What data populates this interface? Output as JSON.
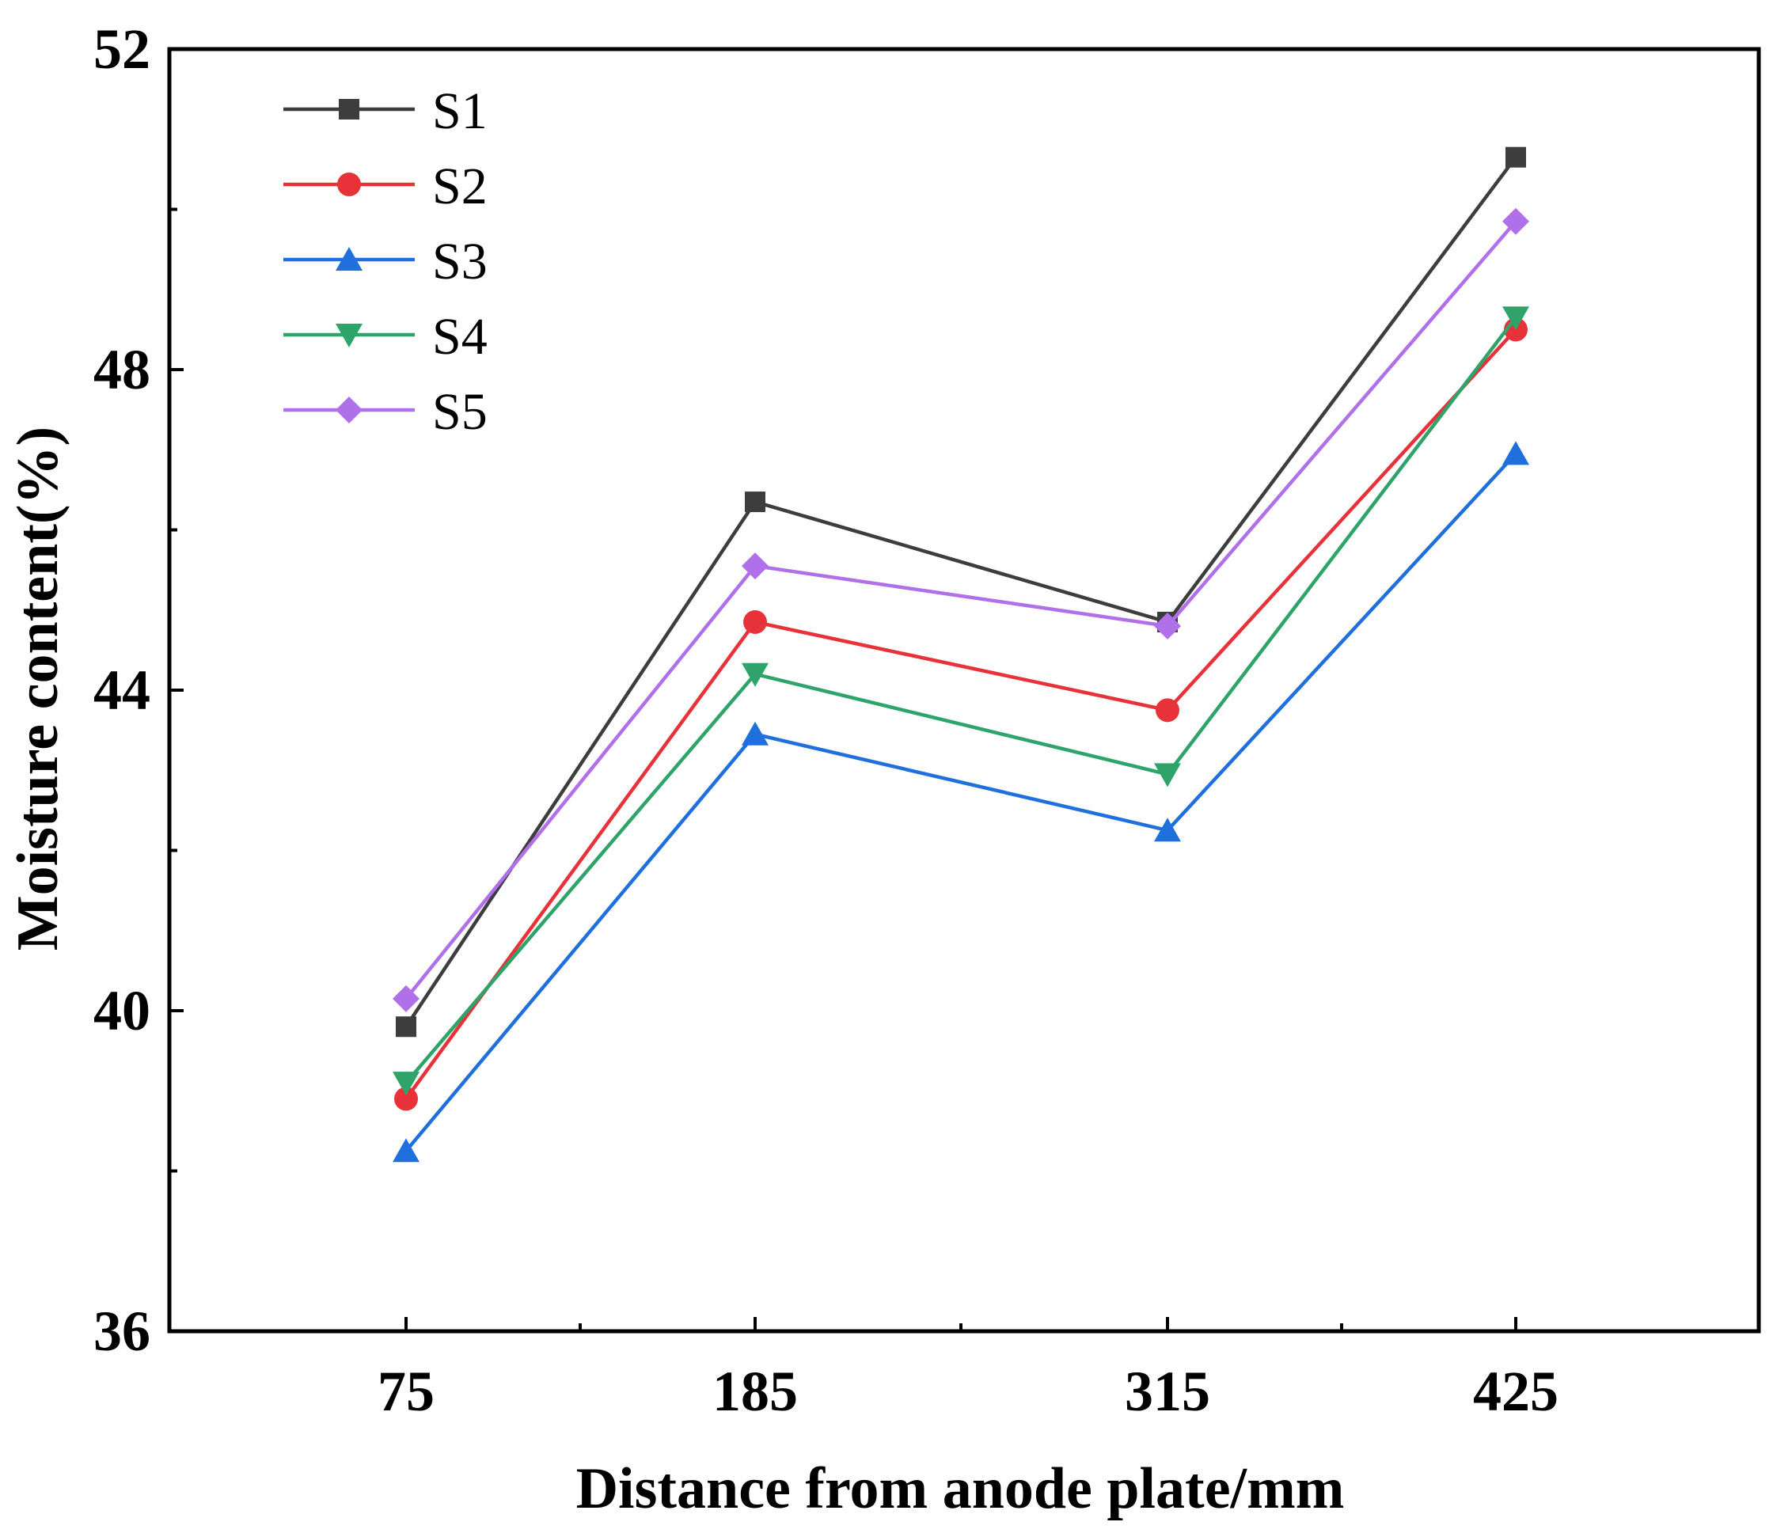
{
  "chart_data": {
    "type": "line",
    "title": "",
    "xlabel": "Distance from anode plate/mm",
    "ylabel": "Moisture content(%)",
    "categories": [
      "75",
      "185",
      "315",
      "425"
    ],
    "x": [
      75,
      185,
      315,
      425
    ],
    "ylim": [
      36,
      52
    ],
    "yticks": [
      36,
      40,
      44,
      48,
      52
    ],
    "ytick_labels": [
      "36",
      "40",
      "44",
      "48",
      "52"
    ],
    "legend_position": "top-left",
    "series": [
      {
        "name": "S1",
        "color": "#3d3d3d",
        "marker": "square",
        "values": [
          39.8,
          46.35,
          44.85,
          50.65
        ]
      },
      {
        "name": "S2",
        "color": "#e8323a",
        "marker": "circle",
        "values": [
          38.9,
          44.85,
          43.75,
          48.5
        ]
      },
      {
        "name": "S3",
        "color": "#1f6fdc",
        "marker": "triangle-up",
        "values": [
          38.25,
          43.45,
          42.25,
          46.95
        ]
      },
      {
        "name": "S4",
        "color": "#2ea36a",
        "marker": "triangle-down",
        "values": [
          39.1,
          44.2,
          42.95,
          48.65
        ]
      },
      {
        "name": "S5",
        "color": "#b070ea",
        "marker": "diamond",
        "values": [
          40.15,
          45.55,
          44.8,
          49.85
        ]
      }
    ]
  }
}
